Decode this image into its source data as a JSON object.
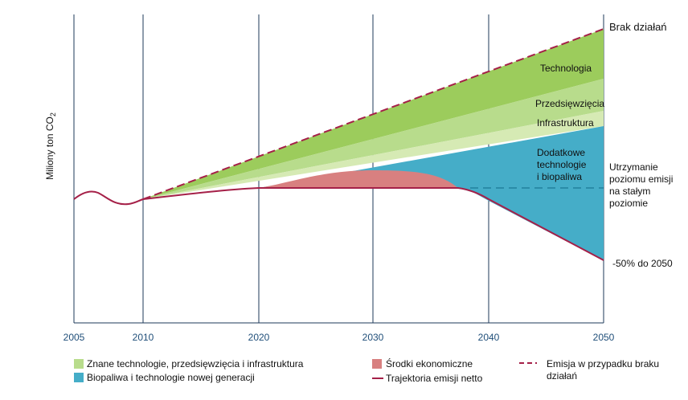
{
  "chart_data": {
    "type": "area",
    "ylabel": "Miliony ton CO",
    "ylabel_sub": "2",
    "x_ticks": [
      "2005",
      "2010",
      "2020",
      "2030",
      "2040",
      "2050"
    ],
    "xlim": [
      2005,
      2050
    ],
    "grid_vertical": true,
    "series": [
      {
        "name": "Emisja w przypadku braku działań",
        "x": [
          2010,
          2050
        ],
        "y": [
          100,
          184
        ]
      },
      {
        "name": "Trajektoria emisji netto",
        "x": [
          2005,
          2006,
          2007,
          2008,
          2009,
          2010,
          2015,
          2020,
          2025,
          2030,
          2035,
          2037,
          2040,
          2045,
          2050
        ],
        "y": [
          100,
          107,
          106,
          99,
          99,
          100,
          107,
          111,
          111,
          111,
          111,
          109,
          99,
          83,
          67
        ]
      }
    ],
    "bands": [
      {
        "label": "Technologia",
        "top_2050": 184,
        "bottom_2050": 170
      },
      {
        "label": "Przedsięwzięcia",
        "top_2050": 170,
        "bottom_2050": 160
      },
      {
        "label": "Infrastruktura",
        "top_2050": 160,
        "bottom_2050": 155
      },
      {
        "label": "Dodatkowe technologie i biopaliwa",
        "top_2050": 155,
        "bottom_2050": 67
      },
      {
        "label": "Środki ekonomiczne",
        "peak_2030": 116
      }
    ],
    "reference_level": {
      "y": 111,
      "from_x": 2020
    }
  },
  "labels": {
    "brak": "Brak działań",
    "technologia": "Technologia",
    "przedsiewziecia": "Przedsięwzięcia",
    "infrastruktura": "Infrastruktura",
    "dodatkowe": [
      "Dodatkowe",
      "technologie",
      "i biopaliwa"
    ],
    "utrzymanie": [
      "Utrzymanie",
      "poziomu emisji",
      "na stałym",
      "poziomie"
    ],
    "minus50": "-50% do 2050"
  },
  "legend": {
    "green": "Znane technologie, przedsięwzięcia i infrastruktura",
    "blue": "Biopaliwa i technologie nowej generacji",
    "red_fill": "Środki ekonomiczne",
    "net_line": "Trajektoria emisji netto",
    "dashed_line": [
      "Emisja w przypadku braku",
      "działań"
    ]
  },
  "colors": {
    "green_dark": "#9ccc5c",
    "green_mid": "#b8dc8c",
    "green_light": "#d6eab4",
    "blue": "#45adc8",
    "red_fill": "#d88080",
    "net_line": "#a52048",
    "grid": "#1e3a5a",
    "dashed_blue": "#2a8ca8"
  }
}
